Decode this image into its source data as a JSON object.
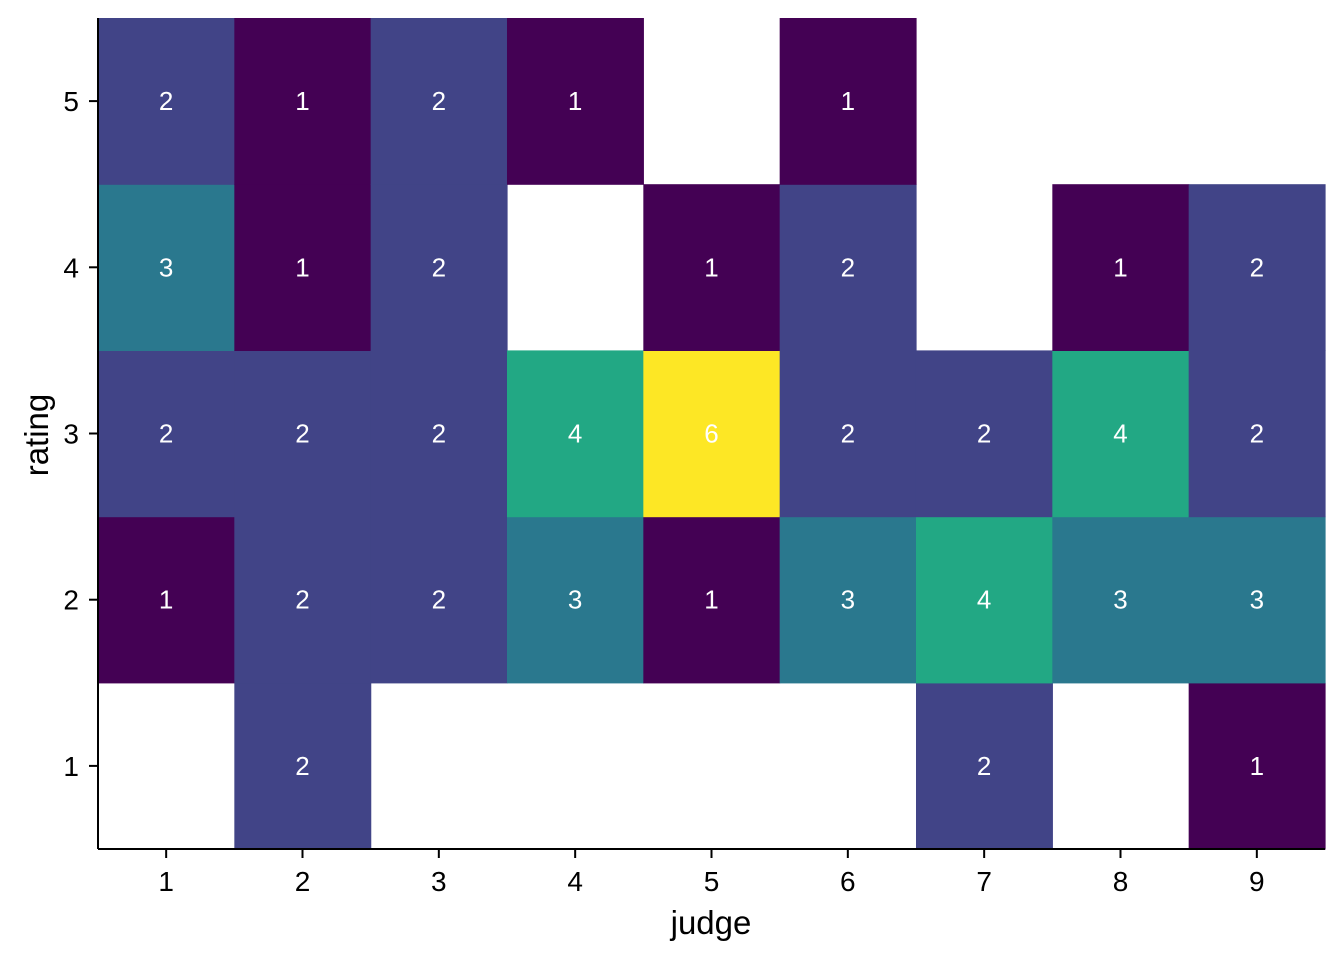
{
  "chart_data": {
    "type": "heatmap",
    "xlabel": "judge",
    "ylabel": "rating",
    "x_categories": [
      "1",
      "2",
      "3",
      "4",
      "5",
      "6",
      "7",
      "8",
      "9"
    ],
    "y_categories": [
      "1",
      "2",
      "3",
      "4",
      "5"
    ],
    "color_scale": {
      "name": "viridis",
      "min": 1,
      "max": 6
    },
    "cells": [
      {
        "judge": "1",
        "rating": "2",
        "count": 1
      },
      {
        "judge": "1",
        "rating": "3",
        "count": 2
      },
      {
        "judge": "1",
        "rating": "4",
        "count": 3
      },
      {
        "judge": "1",
        "rating": "5",
        "count": 2
      },
      {
        "judge": "2",
        "rating": "1",
        "count": 2
      },
      {
        "judge": "2",
        "rating": "2",
        "count": 2
      },
      {
        "judge": "2",
        "rating": "3",
        "count": 2
      },
      {
        "judge": "2",
        "rating": "4",
        "count": 1
      },
      {
        "judge": "2",
        "rating": "5",
        "count": 1
      },
      {
        "judge": "3",
        "rating": "2",
        "count": 2
      },
      {
        "judge": "3",
        "rating": "3",
        "count": 2
      },
      {
        "judge": "3",
        "rating": "4",
        "count": 2
      },
      {
        "judge": "3",
        "rating": "5",
        "count": 2
      },
      {
        "judge": "4",
        "rating": "2",
        "count": 3
      },
      {
        "judge": "4",
        "rating": "3",
        "count": 4
      },
      {
        "judge": "4",
        "rating": "5",
        "count": 1
      },
      {
        "judge": "5",
        "rating": "2",
        "count": 1
      },
      {
        "judge": "5",
        "rating": "3",
        "count": 6
      },
      {
        "judge": "5",
        "rating": "4",
        "count": 1
      },
      {
        "judge": "6",
        "rating": "2",
        "count": 3
      },
      {
        "judge": "6",
        "rating": "3",
        "count": 2
      },
      {
        "judge": "6",
        "rating": "4",
        "count": 2
      },
      {
        "judge": "6",
        "rating": "5",
        "count": 1
      },
      {
        "judge": "7",
        "rating": "1",
        "count": 2
      },
      {
        "judge": "7",
        "rating": "2",
        "count": 4
      },
      {
        "judge": "7",
        "rating": "3",
        "count": 2
      },
      {
        "judge": "8",
        "rating": "2",
        "count": 3
      },
      {
        "judge": "8",
        "rating": "3",
        "count": 4
      },
      {
        "judge": "8",
        "rating": "4",
        "count": 1
      },
      {
        "judge": "9",
        "rating": "1",
        "count": 1
      },
      {
        "judge": "9",
        "rating": "2",
        "count": 3
      },
      {
        "judge": "9",
        "rating": "3",
        "count": 2
      },
      {
        "judge": "9",
        "rating": "4",
        "count": 2
      }
    ],
    "colors": {
      "1": "#440154",
      "2": "#414487",
      "3": "#2A788E",
      "4": "#22A884",
      "6": "#FDE725"
    },
    "grid": false,
    "legend": "none"
  }
}
